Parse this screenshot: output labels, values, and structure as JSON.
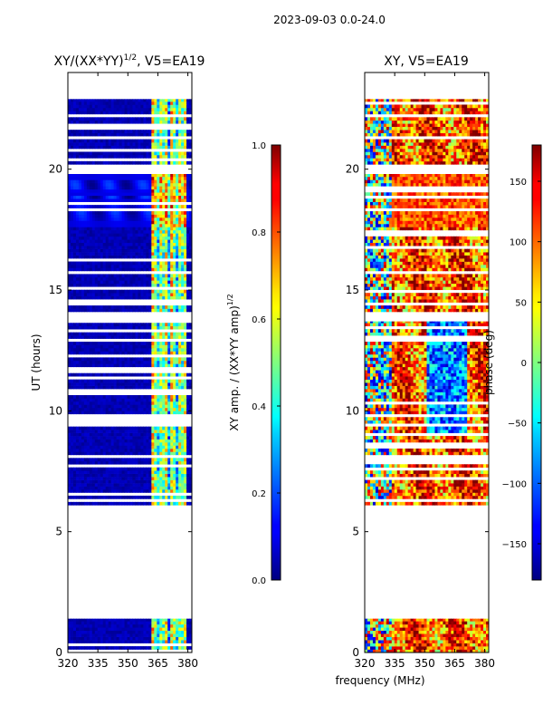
{
  "suptitle": "2023-09-03 0.0-24.0",
  "chart_data": [
    {
      "type": "heatmap",
      "title_main": "XY/(XX*YY)",
      "title_exp": "1/2",
      "title_suffix": ", V5=EA19",
      "ylabel": "UT (hours)",
      "xlabel": "",
      "xlim": [
        320,
        382
      ],
      "ylim": [
        0,
        24
      ],
      "x_ticks": [
        "320",
        "335",
        "350",
        "365",
        "380"
      ],
      "x_tick_values": [
        320,
        335,
        350,
        365,
        380
      ],
      "y_ticks": [
        "0",
        "5",
        "10",
        "15",
        "20"
      ],
      "y_tick_values": [
        0,
        5,
        10,
        15,
        20
      ],
      "data_blocks": [
        [
          0.0,
          1.4
        ],
        [
          6.1,
          13.7
        ],
        [
          14.1,
          19.8
        ],
        [
          20.2,
          22.9
        ]
      ],
      "colorbar": {
        "label_main": "XY amp. / (XX*YY amp)",
        "label_exp": "1/2",
        "range": [
          0.0,
          1.0
        ],
        "ticks": [
          "0.0",
          "0.2",
          "0.4",
          "0.6",
          "0.8",
          "1.0"
        ],
        "tick_values": [
          0.0,
          0.2,
          0.4,
          0.6,
          0.8,
          1.0
        ]
      }
    },
    {
      "type": "heatmap",
      "title": "XY, V5=EA19",
      "xlabel": "frequency (MHz)",
      "ylabel": "",
      "xlim": [
        320,
        382
      ],
      "ylim": [
        0,
        24
      ],
      "x_ticks": [
        "320",
        "335",
        "350",
        "365",
        "380"
      ],
      "x_tick_values": [
        320,
        335,
        350,
        365,
        380
      ],
      "y_ticks": [
        "0",
        "5",
        "10",
        "15",
        "20"
      ],
      "y_tick_values": [
        0,
        5,
        10,
        15,
        20
      ],
      "data_blocks": [
        [
          0.0,
          1.4
        ],
        [
          6.1,
          13.7
        ],
        [
          14.1,
          19.8
        ],
        [
          20.2,
          22.9
        ]
      ],
      "colorbar": {
        "label": "phase (deg)",
        "range": [
          -180,
          180
        ],
        "ticks": [
          "−150",
          "−100",
          "−50",
          "0",
          "50",
          "100",
          "150"
        ],
        "tick_values": [
          -150,
          -100,
          -50,
          0,
          50,
          100,
          150
        ]
      }
    }
  ]
}
